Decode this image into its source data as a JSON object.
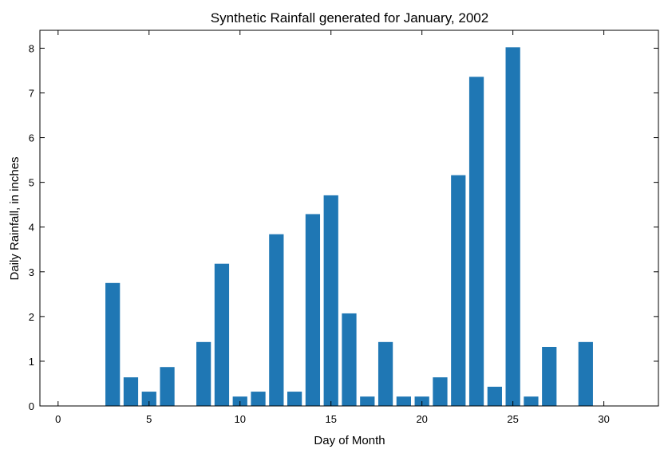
{
  "chart_data": {
    "type": "bar",
    "title": "Synthetic Rainfall generated for January, 2002",
    "xlabel": "Day of Month",
    "ylabel": "Daily Rainfall, in inches",
    "xlim": [
      -1,
      33
    ],
    "ylim": [
      0,
      8.4
    ],
    "xticks": [
      0,
      5,
      10,
      15,
      20,
      25,
      30
    ],
    "yticks": [
      0,
      1,
      2,
      3,
      4,
      5,
      6,
      7,
      8
    ],
    "bar_color": "#1f77b4",
    "grid": false,
    "bars": [
      {
        "x": 3,
        "value": 2.75
      },
      {
        "x": 4,
        "value": 0.64
      },
      {
        "x": 5,
        "value": 0.32
      },
      {
        "x": 6,
        "value": 0.87
      },
      {
        "x": 8,
        "value": 1.43
      },
      {
        "x": 9,
        "value": 3.18
      },
      {
        "x": 10,
        "value": 0.21
      },
      {
        "x": 11,
        "value": 0.32
      },
      {
        "x": 12,
        "value": 3.84
      },
      {
        "x": 13,
        "value": 0.32
      },
      {
        "x": 14,
        "value": 4.29
      },
      {
        "x": 15,
        "value": 4.71
      },
      {
        "x": 16,
        "value": 2.07
      },
      {
        "x": 17,
        "value": 0.21
      },
      {
        "x": 18,
        "value": 1.43
      },
      {
        "x": 19,
        "value": 0.21
      },
      {
        "x": 20,
        "value": 0.21
      },
      {
        "x": 21,
        "value": 0.64
      },
      {
        "x": 22,
        "value": 5.16
      },
      {
        "x": 23,
        "value": 7.36
      },
      {
        "x": 24,
        "value": 0.43
      },
      {
        "x": 25,
        "value": 8.02
      },
      {
        "x": 26,
        "value": 0.21
      },
      {
        "x": 27,
        "value": 1.32
      },
      {
        "x": 29,
        "value": 1.43
      }
    ]
  }
}
